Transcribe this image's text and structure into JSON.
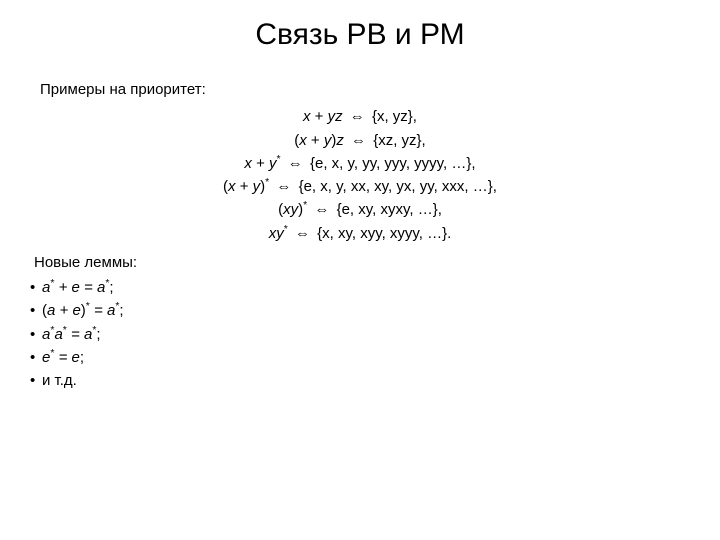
{
  "title": "Связь РВ и РМ",
  "intro": "Примеры на приоритет:",
  "eqs": {
    "e1_lhs_x": "x",
    "e1_lhs_plus": " + ",
    "e1_lhs_yz": "yz",
    "e1_rhs": "{x, yz},",
    "e2_lhs_open": "(",
    "e2_lhs_x": "x",
    "e2_lhs_plus": " + ",
    "e2_lhs_y": "y",
    "e2_lhs_close_z": ")z",
    "e2_rhs": "{xz, yz},",
    "e3_lhs_x": "x",
    "e3_lhs_plus": " + ",
    "e3_lhs_y": "y",
    "e3_star": "*",
    "e3_rhs": "{e, x, y, yy, yyy, yyyy, …},",
    "e4_lhs_open": "(",
    "e4_lhs_x": "x",
    "e4_lhs_plus": " + ",
    "e4_lhs_y": "y",
    "e4_lhs_close": ")",
    "e4_star": "*",
    "e4_rhs": "{e, x, y, xx, xy, yx, yy, xxx, …},",
    "e5_lhs_open": "(",
    "e5_lhs_xy": "xy",
    "e5_lhs_close": ")",
    "e5_star": "*",
    "e5_rhs": "{e, xy, xyxy, …},",
    "e6_lhs_xy": "xy",
    "e6_star": "*",
    "e6_rhs": "{x, xy, xyy, xyyy, …}."
  },
  "arrow": "⇔",
  "section2": "Новые леммы:",
  "lemmas": {
    "l1_a": "a",
    "l1_star": "*",
    "l1_mid": " + e = a",
    "l1_star2": "*",
    "l1_end": ";",
    "l2_open": "(",
    "l2_a": "a",
    "l2_mid": " + e",
    "l2_close": ")",
    "l2_star": "*",
    "l2_eq": " = a",
    "l2_star2": "*",
    "l2_end": ";",
    "l3_a1": "a",
    "l3_star1": "*",
    "l3_a2": "a",
    "l3_star2": "*",
    "l3_eq": " = a",
    "l3_star3": "*",
    "l3_end": ";",
    "l4_e": "e",
    "l4_star": "*",
    "l4_eq": " = e",
    "l4_end": ";",
    "l5": "и т.д."
  },
  "colors": {
    "background": "#ffffff",
    "text": "#000000"
  },
  "fonts": {
    "title_size_pt": 30,
    "body_size_pt": 15,
    "family": "Arial"
  }
}
